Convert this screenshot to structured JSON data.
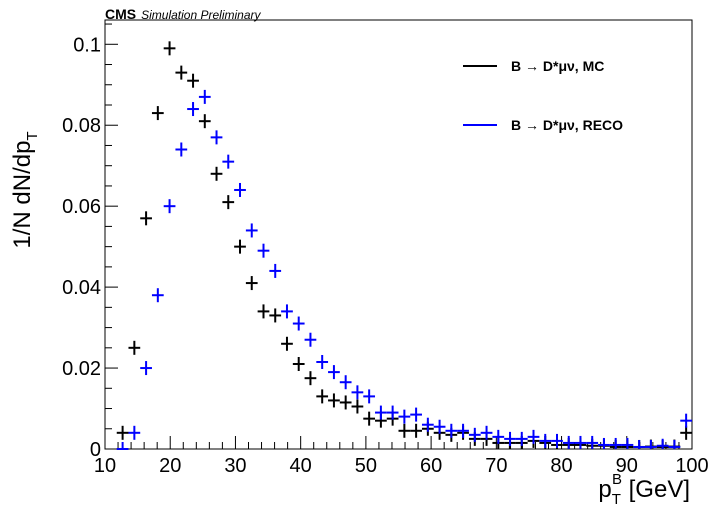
{
  "header": {
    "experiment": "CMS",
    "status": "Simulation Preliminary"
  },
  "chart_data": {
    "type": "scatter",
    "xlabel_main": "p",
    "xlabel_sub": "T",
    "xlabel_sup": "B",
    "xlabel_unit": " [GeV]",
    "ylabel_main": "1/N dN/dp",
    "ylabel_sub": "T",
    "xlim": [
      10,
      100
    ],
    "ylim": [
      0,
      0.106
    ],
    "x_ticks": [
      10,
      20,
      30,
      40,
      50,
      60,
      70,
      80,
      90,
      100
    ],
    "x_tick_labels": [
      "10",
      "20",
      "30",
      "40",
      "50",
      "60",
      "70",
      "80",
      "90",
      "100"
    ],
    "y_ticks": [
      0,
      0.02,
      0.04,
      0.06,
      0.08,
      0.1
    ],
    "y_tick_labels": [
      "0",
      "0.02",
      "0.04",
      "0.06",
      "0.08",
      "0.1"
    ],
    "grid": false,
    "legend_position": "top-right",
    "bin_width": 1.8,
    "series": [
      {
        "name": "B → D*μν, MC",
        "color": "#000000",
        "x": [
          12.7,
          14.5,
          16.3,
          18.1,
          19.9,
          21.7,
          23.5,
          25.3,
          27.1,
          28.9,
          30.7,
          32.5,
          34.3,
          36.1,
          37.9,
          39.7,
          41.5,
          43.3,
          45.1,
          46.9,
          48.7,
          50.5,
          52.3,
          54.1,
          55.9,
          57.7,
          59.5,
          61.3,
          63.1,
          64.9,
          66.7,
          68.5,
          70.3,
          72.1,
          73.9,
          75.7,
          77.5,
          79.3,
          81.1,
          82.9,
          84.7,
          86.5,
          88.3,
          90.1,
          91.9,
          93.7,
          95.5,
          97.3,
          99.1
        ],
        "y": [
          0.004,
          0.025,
          0.057,
          0.083,
          0.099,
          0.093,
          0.091,
          0.081,
          0.068,
          0.061,
          0.05,
          0.041,
          0.034,
          0.033,
          0.026,
          0.021,
          0.0175,
          0.013,
          0.012,
          0.0115,
          0.0105,
          0.0075,
          0.007,
          0.0075,
          0.0045,
          0.0045,
          0.005,
          0.004,
          0.0035,
          0.004,
          0.0025,
          0.0025,
          0.0015,
          0.0015,
          0.0015,
          0.002,
          0.0015,
          0.001,
          0.001,
          0.001,
          0.0008,
          0.0008,
          0.0005,
          0.0005,
          0.0005,
          0.0006,
          0.0005,
          0.0006,
          0.004
        ]
      },
      {
        "name": "B → D*μν, RECO",
        "color": "#0000ff",
        "x": [
          12.7,
          14.5,
          16.3,
          18.1,
          19.9,
          21.7,
          23.5,
          25.3,
          27.1,
          28.9,
          30.7,
          32.5,
          34.3,
          36.1,
          37.9,
          39.7,
          41.5,
          43.3,
          45.1,
          46.9,
          48.7,
          50.5,
          52.3,
          54.1,
          55.9,
          57.7,
          59.5,
          61.3,
          63.1,
          64.9,
          66.7,
          68.5,
          70.3,
          72.1,
          73.9,
          75.7,
          77.5,
          79.3,
          81.1,
          82.9,
          84.7,
          86.5,
          88.3,
          90.1,
          91.9,
          93.7,
          95.5,
          97.3,
          99.1
        ],
        "y": [
          0.0,
          0.004,
          0.02,
          0.038,
          0.06,
          0.074,
          0.084,
          0.087,
          0.077,
          0.071,
          0.064,
          0.054,
          0.049,
          0.044,
          0.034,
          0.031,
          0.027,
          0.0215,
          0.019,
          0.0165,
          0.014,
          0.013,
          0.009,
          0.009,
          0.008,
          0.0085,
          0.006,
          0.0055,
          0.0045,
          0.0045,
          0.0035,
          0.004,
          0.003,
          0.0025,
          0.0025,
          0.003,
          0.002,
          0.002,
          0.0015,
          0.0015,
          0.0015,
          0.001,
          0.001,
          0.001,
          0.0005,
          0.0005,
          0.0008,
          0.0005,
          0.007
        ]
      }
    ]
  }
}
